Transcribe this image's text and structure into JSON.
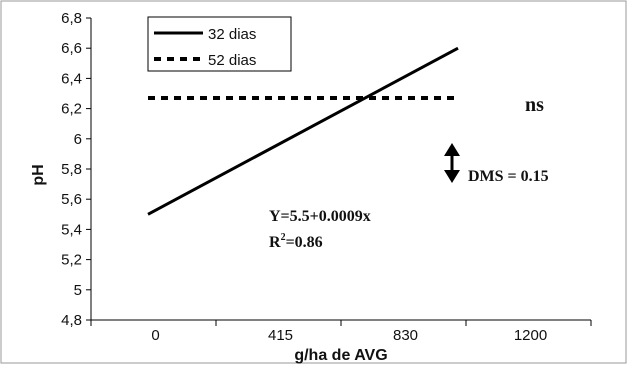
{
  "chart_data": {
    "type": "line",
    "xlabel": "g/ha de AVG",
    "ylabel": "pH",
    "categories": [
      "0",
      "415",
      "830",
      "1200"
    ],
    "x": [
      0,
      1200
    ],
    "ylim": [
      4.8,
      6.8
    ],
    "yticks": [
      "4,8",
      "5",
      "5,2",
      "5,4",
      "5,6",
      "5,8",
      "6",
      "6,2",
      "6,4",
      "6,6",
      "6,8"
    ],
    "grid": false,
    "legend_position": "top-left",
    "series": [
      {
        "name": "32 dias",
        "style": "solid",
        "values": [
          5.5,
          6.6
        ]
      },
      {
        "name": "52 dias",
        "style": "dashed",
        "values": [
          6.27,
          6.27
        ]
      }
    ],
    "annotations": {
      "ns": "ns",
      "dms": "DMS = 0.15",
      "equation": "Y=5.5+0.0009x",
      "r2_prefix": "R",
      "r2_sup": "2",
      "r2_suffix": "=0.86"
    }
  }
}
